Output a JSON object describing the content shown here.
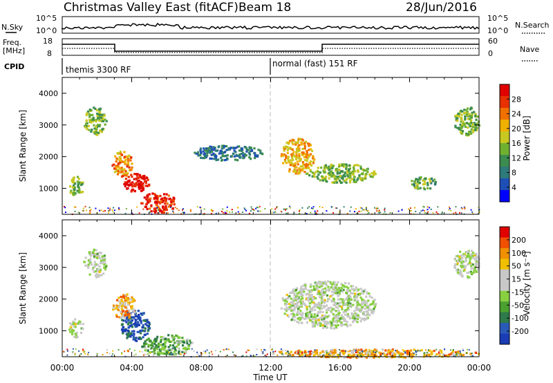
{
  "header": {
    "title": "Christmas Valley East (fitACF)",
    "beam": "Beam 18",
    "date": "28/Jun/2016"
  },
  "strip_labels": {
    "nsky": "N.Sky",
    "freq_line1": "Freq.",
    "freq_line2": "[MHz]",
    "cpid": "CPID",
    "nsearch": "N.Search",
    "nave": "Nave",
    "left_ticks_nsky": [
      "10^5",
      "10^0"
    ],
    "right_ticks_nsearch": [
      "10^5",
      "10^0"
    ],
    "left_ticks_freq": [
      "18",
      "8"
    ],
    "right_ticks_nave": [
      "60",
      "0"
    ]
  },
  "cpid_labels": [
    "themis 3300 RF",
    "normal (fast) 151 RF"
  ],
  "chart_data": [
    {
      "type": "heatmap",
      "name": "power",
      "ylabel": "Slant Range [km]",
      "y_ticks": [
        "1000",
        "2000",
        "3000",
        "4000"
      ],
      "colorbar_label": "Power [dB]",
      "colorbar_ticks": [
        "4",
        "8",
        "12",
        "16",
        "20",
        "24",
        "28"
      ],
      "colorbar_colors": [
        "#0000ff",
        "#1e4fb5",
        "#2f7a7a",
        "#3c8c50",
        "#70b030",
        "#c8c820",
        "#f0b000",
        "#f07000",
        "#e83000",
        "#e00000"
      ],
      "xlim": [
        0,
        24
      ],
      "ylim": [
        180,
        4500
      ],
      "blobs": [
        {
          "t0": 1.2,
          "t1": 2.5,
          "r0": 2700,
          "r1": 3600,
          "level": 0.45
        },
        {
          "t0": 2.8,
          "t1": 4.0,
          "r0": 1400,
          "r1": 2200,
          "level": 0.7
        },
        {
          "t0": 3.5,
          "t1": 5.0,
          "r0": 900,
          "r1": 1500,
          "level": 0.95
        },
        {
          "t0": 4.5,
          "t1": 6.5,
          "r0": 250,
          "r1": 900,
          "level": 0.9
        },
        {
          "t0": 0.3,
          "t1": 1.2,
          "r0": 800,
          "r1": 1400,
          "level": 0.45
        },
        {
          "t0": 12.5,
          "t1": 14.5,
          "r0": 1500,
          "r1": 2600,
          "level": 0.65
        },
        {
          "t0": 14.0,
          "t1": 18.0,
          "r0": 1200,
          "r1": 1800,
          "level": 0.45
        },
        {
          "t0": 20.0,
          "t1": 21.5,
          "r0": 1000,
          "r1": 1400,
          "level": 0.4
        },
        {
          "t0": 22.5,
          "t1": 24.0,
          "r0": 2700,
          "r1": 3600,
          "level": 0.45
        },
        {
          "t0": 7.5,
          "t1": 11.5,
          "r0": 1900,
          "r1": 2400,
          "level": 0.25
        }
      ]
    },
    {
      "type": "heatmap",
      "name": "velocity",
      "ylabel": "Slant Range [km]",
      "y_ticks": [
        "1000",
        "2000",
        "3000",
        "4000"
      ],
      "colorbar_label": "Velocity [m s⁻¹]",
      "colorbar_ticks": [
        "200",
        "100",
        "50",
        "15",
        "-15",
        "-50",
        "-100",
        "-200"
      ],
      "colorbar_colors": [
        "#1a3cb4",
        "#2a5ab8",
        "#2e7a4a",
        "#4ca030",
        "#88d040",
        "#c8c8c8",
        "#c8c8c8",
        "#f0c000",
        "#f09000",
        "#f05000",
        "#e00000"
      ],
      "xlim": [
        0,
        24
      ],
      "ylim": [
        180,
        4500
      ],
      "blobs": [
        {
          "t0": 3.3,
          "t1": 5.0,
          "r0": 700,
          "r1": 1700,
          "level": 0.12
        },
        {
          "t0": 1.2,
          "t1": 2.5,
          "r0": 2700,
          "r1": 3600,
          "level": 0.5
        },
        {
          "t0": 0.3,
          "t1": 1.2,
          "r0": 800,
          "r1": 1400,
          "level": 0.5
        },
        {
          "t0": 4.5,
          "t1": 7.5,
          "r0": 250,
          "r1": 900,
          "level": 0.35
        },
        {
          "t0": 12.5,
          "t1": 18.0,
          "r0": 1100,
          "r1": 2600,
          "level": 0.5
        },
        {
          "t0": 12.0,
          "t1": 24.0,
          "r0": 180,
          "r1": 450,
          "level": 0.72
        },
        {
          "t0": 22.5,
          "t1": 24.0,
          "r0": 2700,
          "r1": 3600,
          "level": 0.5
        },
        {
          "t0": 2.8,
          "t1": 4.2,
          "r0": 1400,
          "r1": 2200,
          "level": 0.72
        }
      ]
    }
  ],
  "x_axis": {
    "label": "Time UT",
    "ticks": [
      "00:00",
      "04:00",
      "08:00",
      "12:00",
      "16:00",
      "20:00",
      "00:00"
    ]
  }
}
